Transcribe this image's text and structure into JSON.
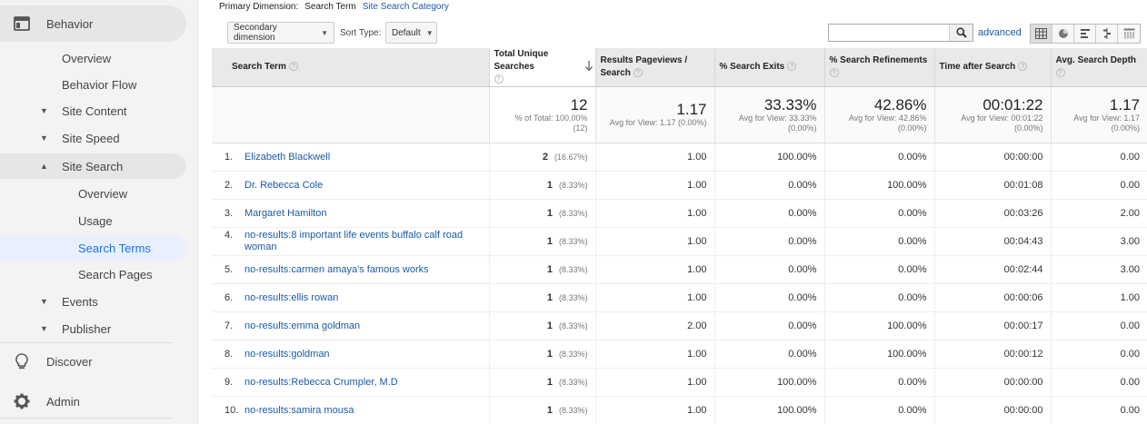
{
  "sidebar": {
    "behavior": "Behavior",
    "items": [
      {
        "label": "Overview",
        "level": 1
      },
      {
        "label": "Behavior Flow",
        "level": 1
      },
      {
        "label": "Site Content",
        "level": 1,
        "caret": "▼"
      },
      {
        "label": "Site Speed",
        "level": 1,
        "caret": "▼"
      },
      {
        "label": "Site Search",
        "level": 1,
        "caret": "▲"
      },
      {
        "label": "Overview",
        "level": 2
      },
      {
        "label": "Usage",
        "level": 2
      },
      {
        "label": "Search Terms",
        "level": 2
      },
      {
        "label": "Search Pages",
        "level": 2
      },
      {
        "label": "Events",
        "level": 1,
        "caret": "▼"
      },
      {
        "label": "Publisher",
        "level": 1,
        "caret": "▼"
      }
    ],
    "discover": "Discover",
    "admin": "Admin"
  },
  "primary_dimension": {
    "label": "Primary Dimension:",
    "current": "Search Term",
    "other": "Site Search Category"
  },
  "toolbar": {
    "secondary_dimension": "Secondary dimension",
    "sort_type_label": "Sort Type:",
    "sort_type_value": "Default",
    "search_value": "",
    "advanced": "advanced"
  },
  "table": {
    "headers": [
      "Search Term",
      "Total Unique Searches",
      "Results Pageviews / Search",
      "% Search Exits",
      "% Search Refinements",
      "Time after Search",
      "Avg. Search Depth"
    ],
    "totals": [
      {
        "value": "12",
        "sub1": "% of Total: 100.00%",
        "sub2": "(12)"
      },
      {
        "value": "1.17",
        "sub1": "Avg for View: 1.17 (0.00%)",
        "sub2": ""
      },
      {
        "value": "33.33%",
        "sub1": "Avg for View: 33.33%",
        "sub2": "(0.00%)"
      },
      {
        "value": "42.86%",
        "sub1": "Avg for View: 42.86%",
        "sub2": "(0.00%)"
      },
      {
        "value": "00:01:22",
        "sub1": "Avg for View: 00:01:22",
        "sub2": "(0.00%)"
      },
      {
        "value": "1.17",
        "sub1": "Avg for View: 1.17",
        "sub2": "(0.00%)"
      }
    ],
    "rows": [
      {
        "idx": "1.",
        "term": "Elizabeth Blackwell",
        "count": "2",
        "pct": "(16.67%)",
        "rps": "1.00",
        "exits": "100.00%",
        "refine": "0.00%",
        "time": "00:00:00",
        "depth": "0.00"
      },
      {
        "idx": "2.",
        "term": "Dr. Rebecca Cole",
        "count": "1",
        "pct": "(8.33%)",
        "rps": "1.00",
        "exits": "0.00%",
        "refine": "100.00%",
        "time": "00:01:08",
        "depth": "0.00"
      },
      {
        "idx": "3.",
        "term": "Margaret Hamilton",
        "count": "1",
        "pct": "(8.33%)",
        "rps": "1.00",
        "exits": "0.00%",
        "refine": "0.00%",
        "time": "00:03:26",
        "depth": "2.00"
      },
      {
        "idx": "4.",
        "term": "no-results:8 important life events buffalo calf road woman",
        "count": "1",
        "pct": "(8.33%)",
        "rps": "1.00",
        "exits": "0.00%",
        "refine": "0.00%",
        "time": "00:04:43",
        "depth": "3.00"
      },
      {
        "idx": "5.",
        "term": "no-results:carmen amaya's famous works",
        "count": "1",
        "pct": "(8.33%)",
        "rps": "1.00",
        "exits": "0.00%",
        "refine": "0.00%",
        "time": "00:02:44",
        "depth": "3.00"
      },
      {
        "idx": "6.",
        "term": "no-results:ellis rowan",
        "count": "1",
        "pct": "(8.33%)",
        "rps": "1.00",
        "exits": "0.00%",
        "refine": "0.00%",
        "time": "00:00:06",
        "depth": "1.00"
      },
      {
        "idx": "7.",
        "term": "no-results:emma goldman",
        "count": "1",
        "pct": "(8.33%)",
        "rps": "2.00",
        "exits": "0.00%",
        "refine": "100.00%",
        "time": "00:00:17",
        "depth": "0.00"
      },
      {
        "idx": "8.",
        "term": "no-results:goldman",
        "count": "1",
        "pct": "(8.33%)",
        "rps": "1.00",
        "exits": "0.00%",
        "refine": "100.00%",
        "time": "00:00:12",
        "depth": "0.00"
      },
      {
        "idx": "9.",
        "term": "no-results:Rebecca Crumpler, M.D",
        "count": "1",
        "pct": "(8.33%)",
        "rps": "1.00",
        "exits": "100.00%",
        "refine": "0.00%",
        "time": "00:00:00",
        "depth": "0.00"
      },
      {
        "idx": "10.",
        "term": "no-results:samira mousa",
        "count": "1",
        "pct": "(8.33%)",
        "rps": "1.00",
        "exits": "100.00%",
        "refine": "0.00%",
        "time": "00:00:00",
        "depth": "0.00"
      }
    ]
  },
  "icons": {
    "behavior": "behavior-icon",
    "discover": "lightbulb-icon",
    "admin": "gear-icon",
    "search": "search-icon",
    "views": [
      "table-view-icon",
      "pie-view-icon",
      "performance-view-icon",
      "comparison-view-icon",
      "pivot-view-icon"
    ]
  }
}
